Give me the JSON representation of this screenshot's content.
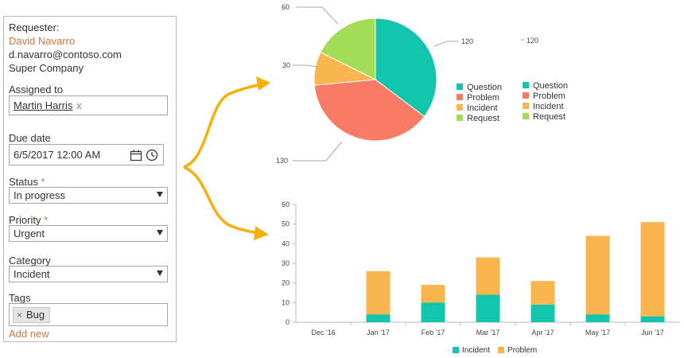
{
  "form": {
    "requester_label": "Requester:",
    "requester_name": "David Navarro",
    "requester_email": "d.navarro@contoso.com",
    "requester_company": "Super Company",
    "assigned_label": "Assigned to",
    "assigned_value": "Martin Harris",
    "remove_mark": "x",
    "due_label": "Due date",
    "due_value": "6/5/2017 12:00 AM",
    "status_label": "Status",
    "status_value": "In progress",
    "priority_label": "Priority",
    "priority_value": "Urgent",
    "category_label": "Category",
    "category_value": "Incident",
    "tags_label": "Tags",
    "tag_value": "Bug",
    "tag_remove": "×",
    "add_new": "Add new",
    "required_mark": "*"
  },
  "colors": {
    "question": "#14c5ae",
    "problem": "#f97b66",
    "incident": "#fab54f",
    "request": "#a3dd57",
    "accent": "#d2763f",
    "arrow": "#f5b10a"
  },
  "icons": {
    "calendar": "calendar-icon",
    "clock": "clock-icon"
  },
  "chart_data": [
    {
      "type": "pie",
      "categories": [
        "Question",
        "Problem",
        "Incident",
        "Request"
      ],
      "values": [
        120,
        130,
        30,
        60
      ],
      "slice_labels": [
        "120",
        "130",
        "30",
        "60"
      ],
      "legend_categories": [
        "Question",
        "Problem",
        "Incident",
        "Request"
      ],
      "extra_label": "120",
      "legend": "right (shown twice)"
    },
    {
      "type": "bar",
      "stacked": true,
      "categories": [
        "Dec '16",
        "Jan '17",
        "Feb '17",
        "Mar '17",
        "Apr '17",
        "May '17",
        "Jun '17"
      ],
      "series": [
        {
          "name": "Incident",
          "values": [
            0,
            4,
            10,
            14,
            9,
            4,
            3
          ]
        },
        {
          "name": "Problem",
          "values": [
            0,
            22,
            9,
            19,
            12,
            40,
            48
          ]
        }
      ],
      "yticks": [
        "0",
        "10",
        "20",
        "30",
        "40",
        "50",
        "60"
      ],
      "ylim": [
        0,
        60
      ],
      "grid": false,
      "legend": "bottom"
    }
  ]
}
